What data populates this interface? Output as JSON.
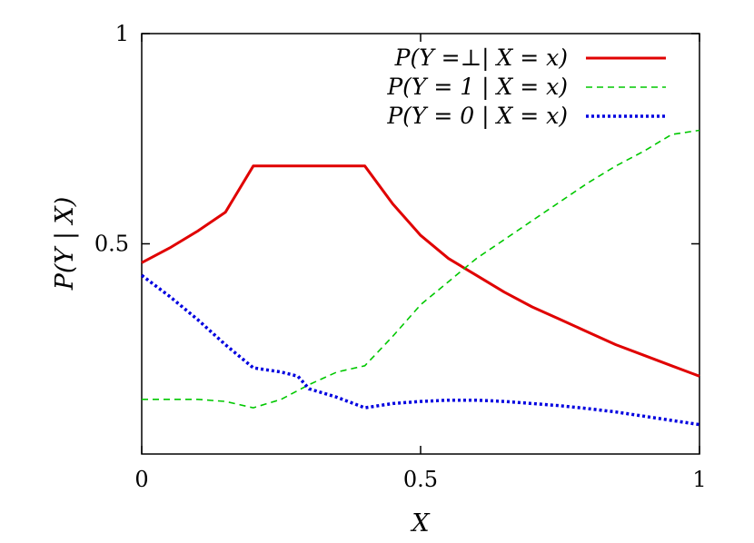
{
  "chart_data": {
    "type": "line",
    "title": "",
    "xlabel": "X",
    "ylabel": "P(Y | X)",
    "xlim": [
      0,
      1
    ],
    "ylim": [
      0,
      1
    ],
    "x_ticks": [
      {
        "value": 0,
        "label": "0"
      },
      {
        "value": 0.5,
        "label": "0.5"
      },
      {
        "value": 1,
        "label": "1"
      }
    ],
    "y_ticks": [
      {
        "value": 0.5,
        "label": "0.5"
      },
      {
        "value": 1,
        "label": "1"
      }
    ],
    "grid": false,
    "legend_position": "top-right",
    "series": [
      {
        "name": "P(Y =⊥| X = x)",
        "color": "#e00000",
        "style": "solid",
        "x": [
          0,
          0.05,
          0.1,
          0.15,
          0.2,
          0.25,
          0.3,
          0.35,
          0.4,
          0.45,
          0.5,
          0.55,
          0.6,
          0.65,
          0.7,
          0.75,
          0.8,
          0.85,
          0.9,
          0.95,
          1
        ],
        "y": [
          0.455,
          0.49,
          0.53,
          0.575,
          0.685,
          0.685,
          0.685,
          0.685,
          0.685,
          0.595,
          0.52,
          0.465,
          0.425,
          0.385,
          0.35,
          0.32,
          0.29,
          0.26,
          0.235,
          0.21,
          0.185
        ]
      },
      {
        "name": "P(Y = 1 | X = x)",
        "color": "#00c800",
        "style": "dashed",
        "x": [
          0,
          0.05,
          0.1,
          0.15,
          0.2,
          0.25,
          0.3,
          0.35,
          0.4,
          0.45,
          0.5,
          0.55,
          0.6,
          0.65,
          0.7,
          0.75,
          0.8,
          0.85,
          0.9,
          0.95,
          1
        ],
        "y": [
          0.13,
          0.13,
          0.13,
          0.125,
          0.11,
          0.13,
          0.165,
          0.195,
          0.21,
          0.28,
          0.355,
          0.41,
          0.465,
          0.51,
          0.555,
          0.6,
          0.645,
          0.685,
          0.72,
          0.76,
          0.77
        ]
      },
      {
        "name": "P(Y = 0 | X = x)",
        "color": "#0000e0",
        "style": "dotted",
        "x": [
          0,
          0.05,
          0.1,
          0.15,
          0.2,
          0.25,
          0.28,
          0.3,
          0.35,
          0.4,
          0.45,
          0.5,
          0.55,
          0.6,
          0.65,
          0.7,
          0.75,
          0.8,
          0.85,
          0.9,
          0.95,
          1
        ],
        "y": [
          0.425,
          0.375,
          0.32,
          0.26,
          0.205,
          0.195,
          0.185,
          0.155,
          0.135,
          0.11,
          0.12,
          0.125,
          0.128,
          0.128,
          0.125,
          0.12,
          0.115,
          0.108,
          0.1,
          0.09,
          0.08,
          0.07
        ]
      }
    ]
  }
}
